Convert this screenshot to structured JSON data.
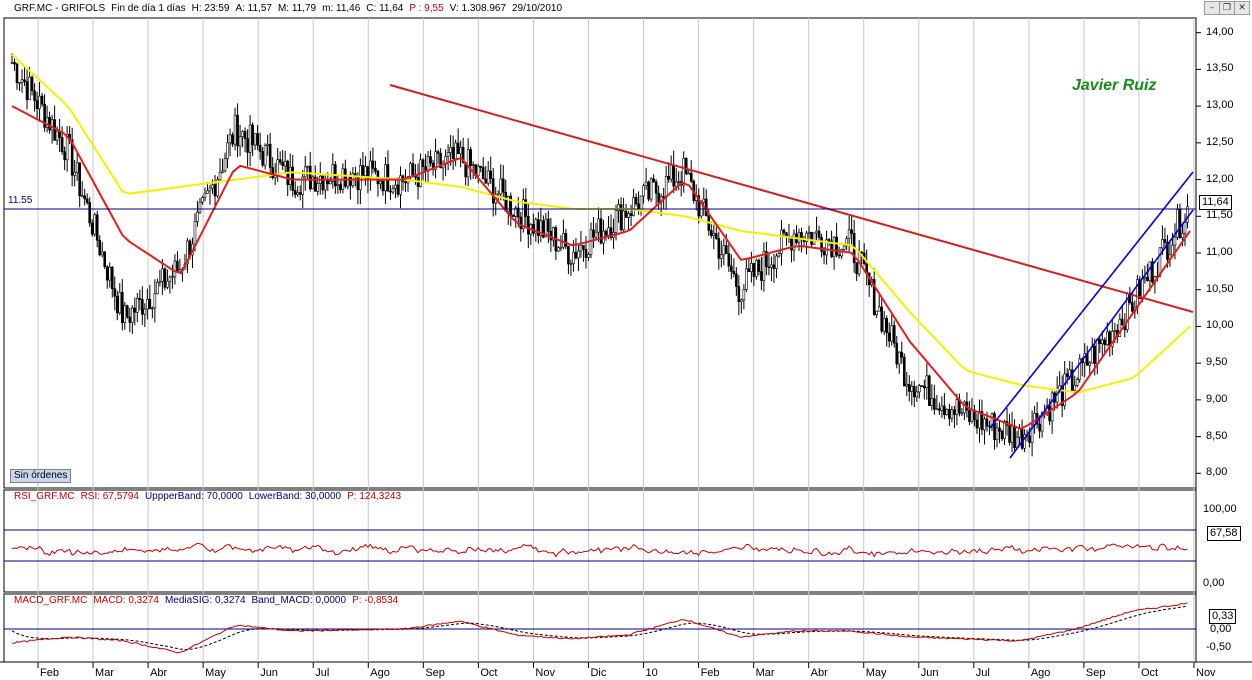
{
  "window": {
    "title_bar": {
      "symbol": "GRF.MC - GRIFOLS",
      "period": "Fin de día 1 días",
      "hour": "H: 23:59",
      "open": "A: 11,57",
      "high": "M: 11,79",
      "low": "m: 11,46",
      "close": "C: 11,64",
      "pct": "P : 9,55",
      "volume": "V: 1.308.967",
      "date": "29/10/2010"
    },
    "buttons": {
      "minimize_icon": "minimize-icon",
      "restore_icon": "restore-icon",
      "close_icon": "close-icon"
    }
  },
  "price_panel": {
    "author": "Javier Ruiz",
    "orders_button": "Sin órdenes",
    "hline_label": "11.55",
    "last_value": "11,64",
    "yticks": [
      "14,00",
      "13,50",
      "13,00",
      "12,50",
      "12,00",
      "11,50",
      "11,00",
      "10,50",
      "10,00",
      "9,50",
      "9,00",
      "8,50",
      "8,00"
    ]
  },
  "rsi_panel": {
    "header": {
      "name": "RSI_GRF.MC",
      "value": "RSI: 67,5794",
      "upper": "UppperBand: 70,0000",
      "lower": "LowerBand: 30,0000",
      "p": "P: 124,3243"
    },
    "yticks": [
      "100,00",
      "0,00"
    ],
    "last_value": "67,58",
    "upper_band": 70,
    "lower_band": 30
  },
  "macd_panel": {
    "header": {
      "name": "MACD_GRF.MC",
      "value": "MACD: 0,3274",
      "signal": "MediaSIG: 0,3274",
      "band": "Band_MACD: 0,0000",
      "p": "P: -0,8534"
    },
    "yticks": [
      "0,00",
      "-0,50"
    ],
    "last_value": "0,33"
  },
  "x_axis": {
    "labels": [
      "Feb",
      "Mar",
      "Abr",
      "May",
      "Jun",
      "Jul",
      "Ago",
      "Sep",
      "Oct",
      "Nov",
      "Dic",
      "10",
      "Feb",
      "Mar",
      "Abr",
      "May",
      "Jun",
      "Jul",
      "Ago",
      "Sep",
      "Oct",
      "Nov"
    ]
  },
  "colors": {
    "price": "#000000",
    "ma_short": "#e02020",
    "ma_long": "#f2f200",
    "resistance_line": "#d02020",
    "channel": "#0000d8",
    "rsi": "#c00000",
    "macd": "#c00000",
    "macd_signal": "#000000"
  },
  "chart_data": {
    "type": "line",
    "x": [
      "2009-01",
      "2009-02",
      "2009-03",
      "2009-04",
      "2009-05",
      "2009-06",
      "2009-07",
      "2009-08",
      "2009-09",
      "2009-10",
      "2009-11",
      "2009-12",
      "2010-01",
      "2010-02",
      "2010-03",
      "2010-04",
      "2010-05",
      "2010-06",
      "2010-07",
      "2010-08",
      "2010-09",
      "2010-10"
    ],
    "series": [
      {
        "key": "close",
        "values": [
          13.6,
          12.4,
          10.1,
          10.8,
          12.7,
          12.0,
          12.1,
          12.0,
          12.3,
          11.6,
          11.0,
          11.6,
          12.1,
          10.5,
          11.3,
          11.1,
          9.3,
          8.8,
          8.5,
          9.3,
          10.3,
          11.6
        ]
      },
      {
        "key": "ma_short",
        "values": [
          13.0,
          12.6,
          11.2,
          10.7,
          12.2,
          12.0,
          12.0,
          12.0,
          12.3,
          11.4,
          11.1,
          11.3,
          12.0,
          10.9,
          11.1,
          11.0,
          9.8,
          8.9,
          8.6,
          9.1,
          10.2,
          11.3
        ]
      },
      {
        "key": "ma_long",
        "values": [
          13.7,
          13.0,
          11.8,
          11.9,
          12.0,
          12.1,
          12.05,
          12.0,
          11.9,
          11.7,
          11.6,
          11.6,
          11.5,
          11.3,
          11.2,
          11.1,
          10.2,
          9.4,
          9.2,
          9.1,
          9.3,
          10.0
        ]
      }
    ],
    "ylim": [
      7.8,
      14.2
    ]
  }
}
